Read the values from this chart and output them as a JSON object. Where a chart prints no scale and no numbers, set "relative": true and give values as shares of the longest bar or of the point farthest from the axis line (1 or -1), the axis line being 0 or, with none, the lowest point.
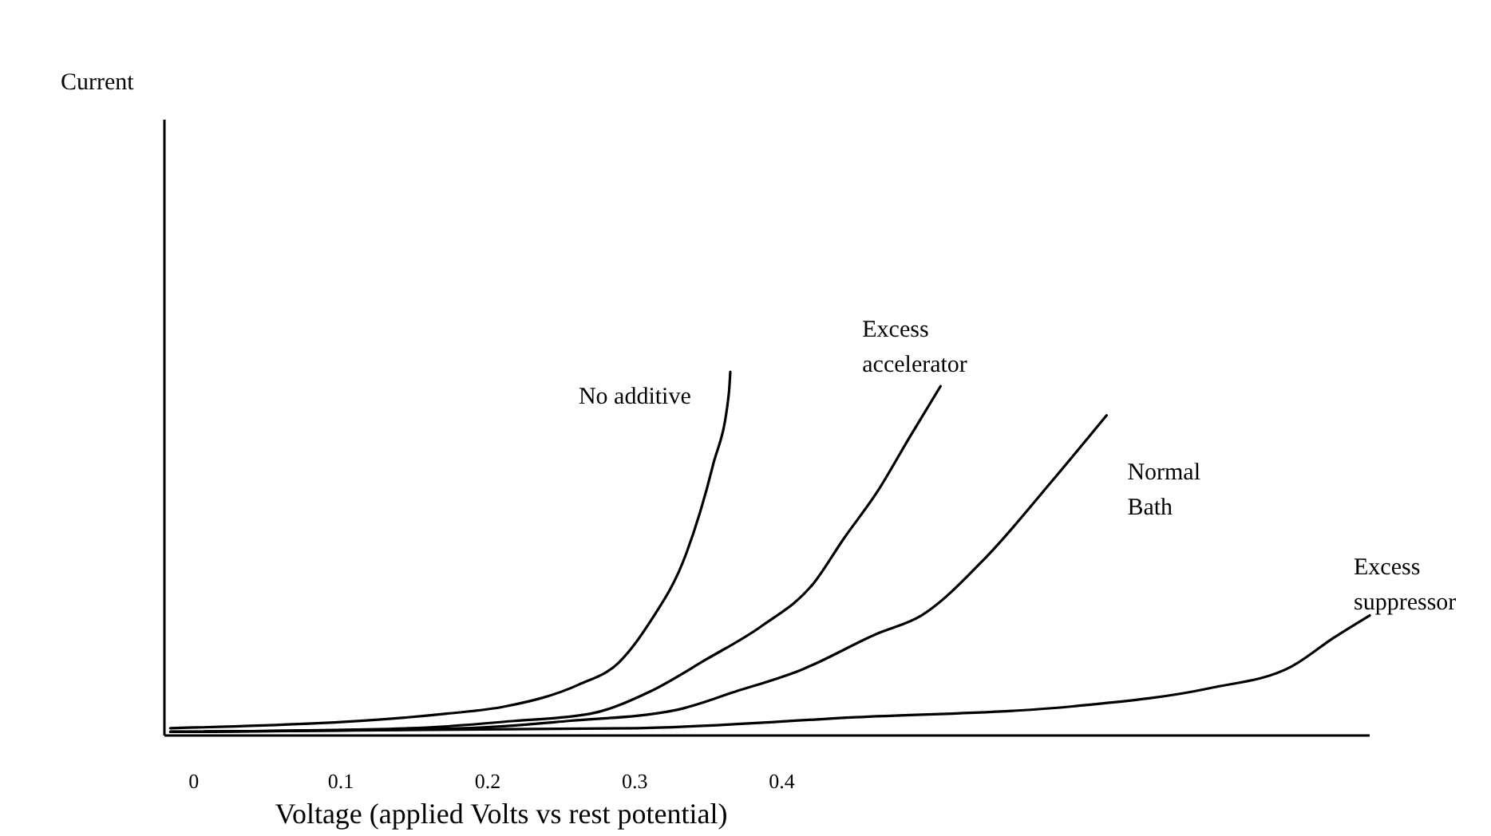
{
  "chart_data": {
    "type": "line",
    "relative": true,
    "annotations": [
      "Current"
    ],
    "xlabel": "Voltage (applied Volts vs rest potential)",
    "xlim": [
      -0.02,
      0.8
    ],
    "xticks": [
      0,
      0.1,
      0.2,
      0.3,
      0.4
    ],
    "tick_labels": "x",
    "grid": false,
    "marker": "none",
    "line_style": "solid",
    "series": [
      {
        "name": "No additive",
        "color": "#000000",
        "x": [
          -0.016,
          0.172,
          0.212,
          0.262,
          0.289,
          0.31,
          0.335,
          0.353,
          0.364,
          0.365
        ],
        "values": [
          0.02,
          0.06,
          0.08,
          0.14,
          0.2,
          0.31,
          0.5,
          0.74,
          0.94,
          1.0
        ]
      },
      {
        "name": "Excess\naccelerator",
        "color": "#000000",
        "x": [
          -0.016,
          0.147,
          0.218,
          0.27,
          0.31,
          0.349,
          0.386,
          0.422,
          0.442,
          0.465,
          0.487,
          0.508
        ],
        "values": [
          0.01,
          0.02,
          0.04,
          0.06,
          0.12,
          0.21,
          0.3,
          0.42,
          0.54,
          0.67,
          0.82,
          0.96
        ]
      },
      {
        "name": "Normal\nBath",
        "color": "#000000",
        "x": [
          -0.016,
          0.183,
          0.255,
          0.328,
          0.368,
          0.413,
          0.465,
          0.495,
          0.539,
          0.584,
          0.621
        ],
        "values": [
          0.01,
          0.02,
          0.04,
          0.07,
          0.12,
          0.18,
          0.28,
          0.33,
          0.49,
          0.7,
          0.88
        ]
      },
      {
        "name": "Excess\nsuppressor",
        "color": "#000000",
        "x": [
          -0.016,
          0.302,
          0.45,
          0.598,
          0.691,
          0.747,
          0.776,
          0.8
        ],
        "values": [
          0.01,
          0.02,
          0.05,
          0.08,
          0.13,
          0.19,
          0.27,
          0.33
        ]
      }
    ]
  }
}
